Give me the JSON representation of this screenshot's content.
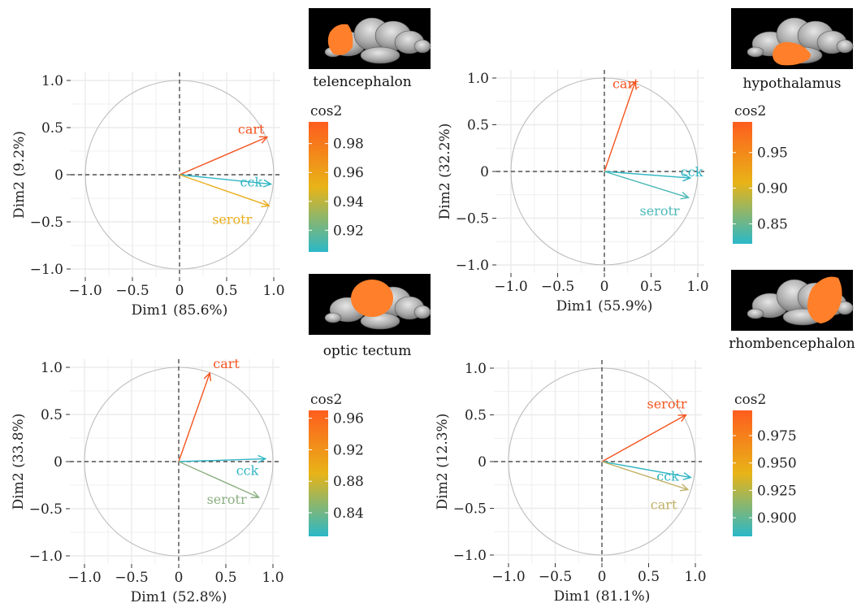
{
  "chart_data": [
    {
      "type": "scatter",
      "subtype": "pca-variable-correlation-circle",
      "region": "telencephalon",
      "xlabel": "Dim1 (85.6%)",
      "ylabel": "Dim2 (9.2%)",
      "xlim": [
        -1.0,
        1.0
      ],
      "ylim": [
        -1.0,
        1.0
      ],
      "xticks": [
        "−1.0",
        "−0.5",
        "0",
        "0.5",
        "1.0"
      ],
      "yticks": [
        "−1.0",
        "−0.5",
        "0",
        "0.5",
        "1.0"
      ],
      "grid": true,
      "unit_circle": true,
      "vectors": [
        {
          "name": "cart",
          "x": 0.93,
          "y": 0.4,
          "color": "#f4541f"
        },
        {
          "name": "cck",
          "x": 0.97,
          "y": -0.1,
          "color": "#2fb5c3"
        },
        {
          "name": "serotr",
          "x": 0.95,
          "y": -0.33,
          "color": "#e9ae1a"
        }
      ],
      "legend": {
        "title": "cos2",
        "labels": [
          "0.98",
          "0.96",
          "0.94",
          "0.92"
        ],
        "values": [
          0.98,
          0.96,
          0.94,
          0.92
        ],
        "range": [
          0.905,
          0.995
        ],
        "gradient": [
          "#2ab8c8",
          "#e8b417",
          "#fe5d1e"
        ]
      }
    },
    {
      "type": "scatter",
      "subtype": "pca-variable-correlation-circle",
      "region": "hypothalamus",
      "xlabel": "Dim1 (55.9%)",
      "ylabel": "Dim2 (32.2%)",
      "xlim": [
        -1.0,
        1.0
      ],
      "ylim": [
        -1.0,
        1.0
      ],
      "xticks": [
        "−1.0",
        "−0.5",
        "0",
        "0.5",
        "1.0"
      ],
      "yticks": [
        "−1.0",
        "−0.5",
        "0",
        "0.5",
        "1.0"
      ],
      "grid": true,
      "unit_circle": true,
      "vectors": [
        {
          "name": "cart",
          "x": 0.33,
          "y": 0.96,
          "color": "#f4541f"
        },
        {
          "name": "cck",
          "x": 0.92,
          "y": -0.07,
          "color": "#2fb5c3"
        },
        {
          "name": "serotr",
          "x": 0.9,
          "y": -0.28,
          "color": "#4db9b8"
        }
      ],
      "legend": {
        "title": "cos2",
        "labels": [
          "0.95",
          "0.90",
          "0.85"
        ],
        "values": [
          0.95,
          0.9,
          0.85
        ],
        "range": [
          0.822,
          0.993
        ],
        "gradient": [
          "#2ab8c8",
          "#e8b417",
          "#fe5d1e"
        ]
      }
    },
    {
      "type": "scatter",
      "subtype": "pca-variable-correlation-circle",
      "region": "optic tectum",
      "xlabel": "Dim1 (52.8%)",
      "ylabel": "Dim2 (33.8%)",
      "xlim": [
        -1.0,
        1.0
      ],
      "ylim": [
        -1.0,
        1.0
      ],
      "xticks": [
        "−1.0",
        "−0.5",
        "0",
        "0.5",
        "1.0"
      ],
      "yticks": [
        "−1.0",
        "−0.5",
        "0",
        "0.5",
        "1.0"
      ],
      "grid": true,
      "unit_circle": true,
      "vectors": [
        {
          "name": "cart",
          "x": 0.33,
          "y": 0.94,
          "color": "#f4541f"
        },
        {
          "name": "cck",
          "x": 0.92,
          "y": 0.03,
          "color": "#2fb5c3"
        },
        {
          "name": "serotr",
          "x": 0.85,
          "y": -0.38,
          "color": "#8caf82"
        }
      ],
      "legend": {
        "title": "cos2",
        "labels": [
          "0.96",
          "0.92",
          "0.88",
          "0.84"
        ],
        "values": [
          0.96,
          0.92,
          0.88,
          0.84
        ],
        "range": [
          0.81,
          0.97
        ],
        "gradient": [
          "#2ab8c8",
          "#e8b417",
          "#fe5d1e"
        ]
      }
    },
    {
      "type": "scatter",
      "subtype": "pca-variable-correlation-circle",
      "region": "rhombencephalon",
      "xlabel": "Dim1 (81.1%)",
      "ylabel": "Dim2 (12.3%)",
      "xlim": [
        -1.0,
        1.0
      ],
      "ylim": [
        -1.0,
        1.0
      ],
      "xticks": [
        "−1.0",
        "−0.5",
        "0",
        "0.5",
        "1.0"
      ],
      "yticks": [
        "−1.0",
        "−0.5",
        "0",
        "0.5",
        "1.0"
      ],
      "grid": true,
      "unit_circle": true,
      "vectors": [
        {
          "name": "serotr",
          "x": 0.9,
          "y": 0.5,
          "color": "#f4541f"
        },
        {
          "name": "cck",
          "x": 0.95,
          "y": -0.17,
          "color": "#2fb5c3"
        },
        {
          "name": "cart",
          "x": 0.92,
          "y": -0.3,
          "color": "#c1b066"
        }
      ],
      "legend": {
        "title": "cos2",
        "labels": [
          "0.975",
          "0.950",
          "0.925",
          "0.900"
        ],
        "values": [
          0.975,
          0.95,
          0.925,
          0.9
        ],
        "range": [
          0.883,
          0.998
        ],
        "gradient": [
          "#2ab8c8",
          "#e8b417",
          "#fe5d1e"
        ]
      }
    }
  ],
  "colors": {
    "grid": "#ebebeb",
    "circle": "#bdbdbd",
    "zero_line": "#333333",
    "highlight": "#ff7f2a",
    "image_background": "#000000",
    "brain": "#a8a8a8"
  },
  "icons": [
    "zebrafish-brain-telencephalon-icon",
    "zebrafish-brain-hypothalamus-icon",
    "zebrafish-brain-optic-tectum-icon",
    "zebrafish-brain-rhombencephalon-icon"
  ]
}
